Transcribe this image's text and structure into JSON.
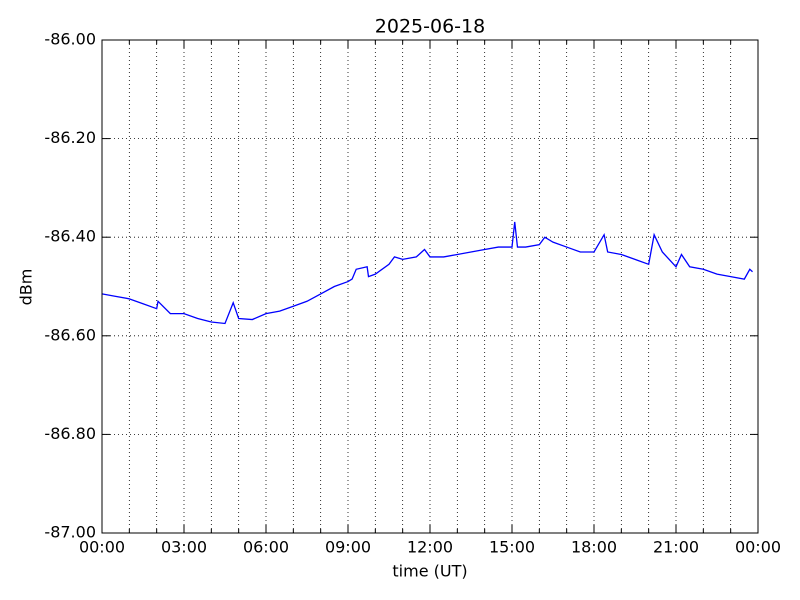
{
  "chart_data": {
    "type": "line",
    "title": "2025-06-18",
    "x_label": "time (UT)",
    "y_label": "dBm",
    "color": "#0000ff",
    "grid": true,
    "x": [
      0,
      0.5,
      1,
      1.5,
      2,
      2.05,
      2.5,
      3,
      3.5,
      4,
      4.5,
      4.8,
      5,
      5.5,
      6,
      6.5,
      7,
      7.5,
      8,
      8.5,
      9,
      9.15,
      9.3,
      9.7,
      9.75,
      10,
      10.5,
      10.7,
      11,
      11.5,
      11.8,
      12,
      12.5,
      13,
      13.5,
      14,
      14.5,
      15,
      15.1,
      15.2,
      15.5,
      16,
      16.2,
      16.5,
      17,
      17.5,
      18,
      18.37,
      18.5,
      19,
      19.5,
      20,
      20.2,
      20.5,
      21,
      21.2,
      21.5,
      22,
      22.5,
      23,
      23.5,
      23.7,
      23.8
    ],
    "values": [
      -86.515,
      -86.52,
      -86.525,
      -86.535,
      -86.545,
      -86.53,
      -86.555,
      -86.555,
      -86.565,
      -86.572,
      -86.575,
      -86.533,
      -86.565,
      -86.567,
      -86.555,
      -86.55,
      -86.54,
      -86.53,
      -86.515,
      -86.5,
      -86.49,
      -86.485,
      -86.465,
      -86.46,
      -86.48,
      -86.475,
      -86.455,
      -86.44,
      -86.445,
      -86.44,
      -86.425,
      -86.44,
      -86.44,
      -86.435,
      -86.43,
      -86.425,
      -86.42,
      -86.42,
      -86.369,
      -86.42,
      -86.42,
      -86.415,
      -86.4,
      -86.41,
      -86.42,
      -86.43,
      -86.43,
      -86.395,
      -86.43,
      -86.435,
      -86.445,
      -86.455,
      -86.395,
      -86.43,
      -86.46,
      -86.435,
      -86.46,
      -86.465,
      -86.475,
      -86.48,
      -86.485,
      -86.465,
      -86.47
    ],
    "xlim": [
      0,
      24
    ],
    "ylim": [
      -87,
      -86
    ],
    "xticks": [
      {
        "value": 0,
        "label": "00:00"
      },
      {
        "value": 3,
        "label": "03:00"
      },
      {
        "value": 6,
        "label": "06:00"
      },
      {
        "value": 9,
        "label": "09:00"
      },
      {
        "value": 12,
        "label": "12:00"
      },
      {
        "value": 15,
        "label": "15:00"
      },
      {
        "value": 18,
        "label": "18:00"
      },
      {
        "value": 21,
        "label": "21:00"
      },
      {
        "value": 24,
        "label": "00:00"
      }
    ],
    "xminorticks": [
      1,
      2,
      4,
      5,
      7,
      8,
      10,
      11,
      13,
      14,
      16,
      17,
      19,
      20,
      22,
      23
    ],
    "yticks": [
      {
        "value": -87,
        "label": "-87.00"
      },
      {
        "value": -86.8,
        "label": "-86.80"
      },
      {
        "value": -86.6,
        "label": "-86.60"
      },
      {
        "value": -86.4,
        "label": "-86.40"
      },
      {
        "value": -86.2,
        "label": "-86.20"
      },
      {
        "value": -86,
        "label": "-86.00"
      }
    ]
  }
}
